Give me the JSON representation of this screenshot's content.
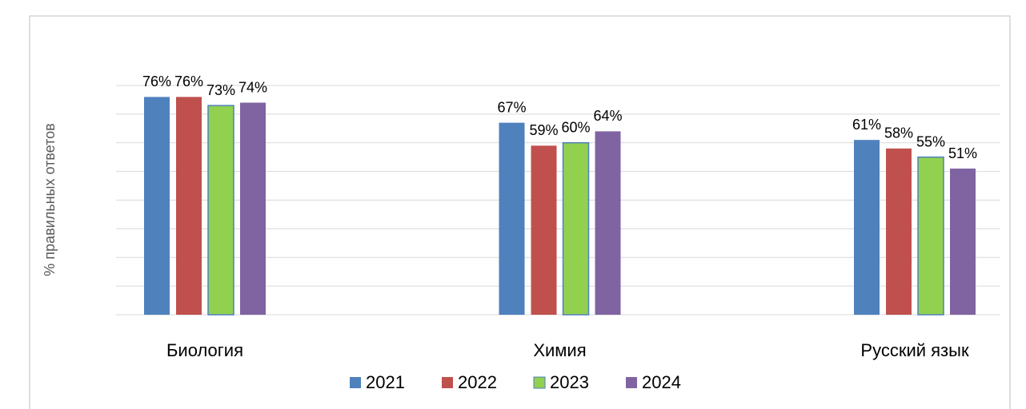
{
  "chart_data": {
    "type": "bar",
    "y_label": "% правильных ответов",
    "categories": [
      "Биология",
      "Химия",
      "Русский язык"
    ],
    "series": [
      {
        "name": "2021",
        "color": "#4f81bd",
        "values": [
          76,
          67,
          61
        ],
        "value_labels": [
          "76%",
          "67%",
          "61%"
        ]
      },
      {
        "name": "2022",
        "color": "#c0504d",
        "values": [
          76,
          59,
          58
        ],
        "value_labels": [
          "76%",
          "59%",
          "58%"
        ]
      },
      {
        "name": "2023",
        "color": "#92d050",
        "values": [
          73,
          60,
          55
        ],
        "value_labels": [
          "73%",
          "60%",
          "55%"
        ]
      },
      {
        "name": "2024",
        "color": "#8064a2",
        "values": [
          74,
          64,
          51
        ],
        "value_labels": [
          "74%",
          "64%",
          "51%"
        ]
      }
    ],
    "ylim": [
      0,
      80
    ],
    "yticks": [
      0,
      10,
      20,
      30,
      40,
      50,
      60,
      70,
      80
    ],
    "ytick_labels": false,
    "grid": true
  }
}
